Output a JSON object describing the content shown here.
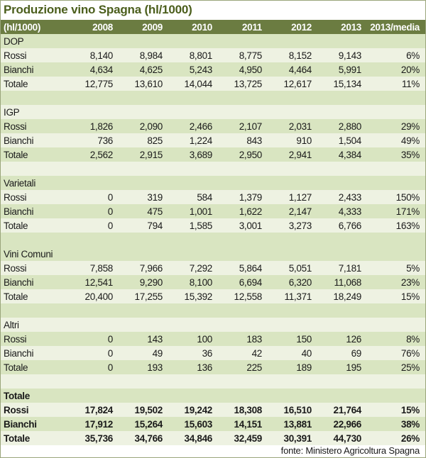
{
  "title": "Produzione vino Spagna (hl/1000)",
  "footer": "fonte: Ministero Agricoltura Spagna",
  "colors": {
    "title_text": "#4b5e1c",
    "header_bg": "#6b7c41",
    "header_text": "#ffffff",
    "row_green": "#d9e5c1",
    "row_light": "#eef2e2",
    "body_text": "#1a1a1a",
    "outer_border": "#9aa57b"
  },
  "table": {
    "corner_label": "(hl/1000)",
    "columns": [
      "2008",
      "2009",
      "2010",
      "2011",
      "2012",
      "2013",
      "2013/media"
    ],
    "sections": [
      {
        "name": "DOP",
        "bold": false,
        "shade": "green",
        "spacer": "green",
        "rows": [
          {
            "label": "Rossi",
            "shade": "light",
            "values": [
              "8,140",
              "8,984",
              "8,801",
              "8,775",
              "8,152",
              "9,143"
            ],
            "media": "6%"
          },
          {
            "label": "Bianchi",
            "shade": "green",
            "values": [
              "4,634",
              "4,625",
              "5,243",
              "4,950",
              "4,464",
              "5,991"
            ],
            "media": "20%"
          },
          {
            "label": "Totale",
            "shade": "light",
            "values": [
              "12,775",
              "13,610",
              "14,044",
              "13,725",
              "12,617",
              "15,134"
            ],
            "media": "11%"
          }
        ]
      },
      {
        "name": "IGP",
        "bold": false,
        "shade": "light",
        "spacer": "light",
        "rows": [
          {
            "label": "Rossi",
            "shade": "green",
            "values": [
              "1,826",
              "2,090",
              "2,466",
              "2,107",
              "2,031",
              "2,880"
            ],
            "media": "29%"
          },
          {
            "label": "Bianchi",
            "shade": "light",
            "values": [
              "736",
              "825",
              "1,224",
              "843",
              "910",
              "1,504"
            ],
            "media": "49%"
          },
          {
            "label": "Totale",
            "shade": "green",
            "values": [
              "2,562",
              "2,915",
              "3,689",
              "2,950",
              "2,941",
              "4,384"
            ],
            "media": "35%"
          }
        ]
      },
      {
        "name": "Varietali",
        "bold": false,
        "shade": "green",
        "spacer": "green",
        "rows": [
          {
            "label": "Rossi",
            "shade": "light",
            "values": [
              "0",
              "319",
              "584",
              "1,379",
              "1,127",
              "2,433"
            ],
            "media": "150%"
          },
          {
            "label": "Bianchi",
            "shade": "green",
            "values": [
              "0",
              "475",
              "1,001",
              "1,622",
              "2,147",
              "4,333"
            ],
            "media": "171%"
          },
          {
            "label": "Totale",
            "shade": "light",
            "values": [
              "0",
              "794",
              "1,585",
              "3,001",
              "3,273",
              "6,766"
            ],
            "media": "163%"
          }
        ]
      },
      {
        "name": "Vini Comuni",
        "bold": false,
        "shade": "green",
        "spacer": "green",
        "rows": [
          {
            "label": "Rossi",
            "shade": "light",
            "values": [
              "7,858",
              "7,966",
              "7,292",
              "5,864",
              "5,051",
              "7,181"
            ],
            "media": "5%"
          },
          {
            "label": "Bianchi",
            "shade": "green",
            "values": [
              "12,541",
              "9,290",
              "8,100",
              "6,694",
              "6,320",
              "11,068"
            ],
            "media": "23%"
          },
          {
            "label": "Totale",
            "shade": "light",
            "values": [
              "20,400",
              "17,255",
              "15,392",
              "12,558",
              "11,371",
              "18,249"
            ],
            "media": "15%"
          }
        ]
      },
      {
        "name": "Altri",
        "bold": false,
        "shade": "light",
        "spacer": "light",
        "rows": [
          {
            "label": "Rossi",
            "shade": "green",
            "values": [
              "0",
              "143",
              "100",
              "183",
              "150",
              "126"
            ],
            "media": "8%"
          },
          {
            "label": "Bianchi",
            "shade": "light",
            "values": [
              "0",
              "49",
              "36",
              "42",
              "40",
              "69"
            ],
            "media": "76%"
          },
          {
            "label": "Totale",
            "shade": "green",
            "values": [
              "0",
              "193",
              "136",
              "225",
              "189",
              "195"
            ],
            "media": "25%"
          }
        ]
      },
      {
        "name": "Totale",
        "bold": true,
        "shade": "green",
        "spacer": null,
        "rows": [
          {
            "label": "Rossi",
            "shade": "light",
            "values": [
              "17,824",
              "19,502",
              "19,242",
              "18,308",
              "16,510",
              "21,764"
            ],
            "media": "15%"
          },
          {
            "label": "Bianchi",
            "shade": "green",
            "values": [
              "17,912",
              "15,264",
              "15,603",
              "14,151",
              "13,881",
              "22,966"
            ],
            "media": "38%"
          },
          {
            "label": "Totale",
            "shade": "light",
            "values": [
              "35,736",
              "34,766",
              "34,846",
              "32,459",
              "30,391",
              "44,730"
            ],
            "media": "26%"
          }
        ]
      }
    ]
  },
  "chart_data": {
    "type": "table",
    "title": "Produzione vino Spagna (hl/1000)",
    "unit": "hl/1000",
    "columns": [
      "2008",
      "2009",
      "2010",
      "2011",
      "2012",
      "2013",
      "2013/media"
    ],
    "sections": [
      {
        "name": "DOP",
        "rows": [
          {
            "label": "Rossi",
            "values": [
              8140,
              8984,
              8801,
              8775,
              8152,
              9143
            ],
            "media_2013": "6%"
          },
          {
            "label": "Bianchi",
            "values": [
              4634,
              4625,
              5243,
              4950,
              4464,
              5991
            ],
            "media_2013": "20%"
          },
          {
            "label": "Totale",
            "values": [
              12775,
              13610,
              14044,
              13725,
              12617,
              15134
            ],
            "media_2013": "11%"
          }
        ]
      },
      {
        "name": "IGP",
        "rows": [
          {
            "label": "Rossi",
            "values": [
              1826,
              2090,
              2466,
              2107,
              2031,
              2880
            ],
            "media_2013": "29%"
          },
          {
            "label": "Bianchi",
            "values": [
              736,
              825,
              1224,
              843,
              910,
              1504
            ],
            "media_2013": "49%"
          },
          {
            "label": "Totale",
            "values": [
              2562,
              2915,
              3689,
              2950,
              2941,
              4384
            ],
            "media_2013": "35%"
          }
        ]
      },
      {
        "name": "Varietali",
        "rows": [
          {
            "label": "Rossi",
            "values": [
              0,
              319,
              584,
              1379,
              1127,
              2433
            ],
            "media_2013": "150%"
          },
          {
            "label": "Bianchi",
            "values": [
              0,
              475,
              1001,
              1622,
              2147,
              4333
            ],
            "media_2013": "171%"
          },
          {
            "label": "Totale",
            "values": [
              0,
              794,
              1585,
              3001,
              3273,
              6766
            ],
            "media_2013": "163%"
          }
        ]
      },
      {
        "name": "Vini Comuni",
        "rows": [
          {
            "label": "Rossi",
            "values": [
              7858,
              7966,
              7292,
              5864,
              5051,
              7181
            ],
            "media_2013": "5%"
          },
          {
            "label": "Bianchi",
            "values": [
              12541,
              9290,
              8100,
              6694,
              6320,
              11068
            ],
            "media_2013": "23%"
          },
          {
            "label": "Totale",
            "values": [
              20400,
              17255,
              15392,
              12558,
              11371,
              18249
            ],
            "media_2013": "15%"
          }
        ]
      },
      {
        "name": "Altri",
        "rows": [
          {
            "label": "Rossi",
            "values": [
              0,
              143,
              100,
              183,
              150,
              126
            ],
            "media_2013": "8%"
          },
          {
            "label": "Bianchi",
            "values": [
              0,
              49,
              36,
              42,
              40,
              69
            ],
            "media_2013": "76%"
          },
          {
            "label": "Totale",
            "values": [
              0,
              193,
              136,
              225,
              189,
              195
            ],
            "media_2013": "25%"
          }
        ]
      },
      {
        "name": "Totale",
        "rows": [
          {
            "label": "Rossi",
            "values": [
              17824,
              19502,
              19242,
              18308,
              16510,
              21764
            ],
            "media_2013": "15%"
          },
          {
            "label": "Bianchi",
            "values": [
              17912,
              15264,
              15603,
              14151,
              13881,
              22966
            ],
            "media_2013": "38%"
          },
          {
            "label": "Totale",
            "values": [
              35736,
              34766,
              34846,
              32459,
              30391,
              44730
            ],
            "media_2013": "26%"
          }
        ]
      }
    ],
    "source": "fonte: Ministero Agricoltura Spagna"
  }
}
